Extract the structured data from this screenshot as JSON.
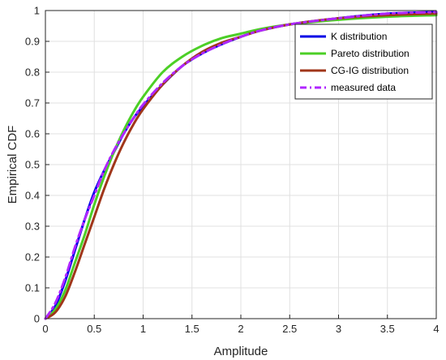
{
  "chart_data": {
    "type": "line",
    "xlabel": "Amplitude",
    "ylabel": "Empirical CDF",
    "xlim": [
      0,
      4
    ],
    "ylim": [
      0,
      1
    ],
    "xticks": [
      "0",
      "0.5",
      "1",
      "1.5",
      "2",
      "2.5",
      "3",
      "3.5",
      "4"
    ],
    "yticks": [
      "0",
      "0.1",
      "0.2",
      "0.3",
      "0.4",
      "0.5",
      "0.6",
      "0.7",
      "0.8",
      "0.9",
      "1"
    ],
    "grid": true,
    "legend_position": "top-right",
    "x": [
      0,
      0.1,
      0.2,
      0.3,
      0.4,
      0.5,
      0.6,
      0.7,
      0.8,
      0.9,
      1.0,
      1.2,
      1.4,
      1.6,
      1.8,
      2.0,
      2.2,
      2.5,
      3.0,
      3.5,
      4.0
    ],
    "series": [
      {
        "name": "K distribution",
        "color": "#0000e6",
        "style": "solid",
        "values": [
          0,
          0.04,
          0.12,
          0.22,
          0.32,
          0.41,
          0.48,
          0.54,
          0.6,
          0.65,
          0.69,
          0.76,
          0.82,
          0.86,
          0.89,
          0.915,
          0.935,
          0.955,
          0.975,
          0.99,
          0.995
        ]
      },
      {
        "name": "Pareto distribution",
        "color": "#4ccf26",
        "style": "solid",
        "values": [
          0,
          0.03,
          0.09,
          0.18,
          0.27,
          0.37,
          0.46,
          0.54,
          0.61,
          0.67,
          0.72,
          0.8,
          0.85,
          0.885,
          0.91,
          0.925,
          0.94,
          0.955,
          0.97,
          0.98,
          0.985
        ]
      },
      {
        "name": "CG-IG distribution",
        "color": "#a0361a",
        "style": "solid",
        "values": [
          0,
          0.02,
          0.07,
          0.15,
          0.24,
          0.33,
          0.42,
          0.5,
          0.57,
          0.63,
          0.68,
          0.76,
          0.82,
          0.865,
          0.895,
          0.915,
          0.935,
          0.955,
          0.975,
          0.985,
          0.99
        ]
      },
      {
        "name": "measured data",
        "color": "#b026ff",
        "style": "dashdot",
        "values": [
          0,
          0.05,
          0.13,
          0.23,
          0.32,
          0.4,
          0.48,
          0.545,
          0.6,
          0.65,
          0.695,
          0.765,
          0.82,
          0.86,
          0.89,
          0.915,
          0.935,
          0.955,
          0.975,
          0.99,
          0.995
        ]
      }
    ]
  }
}
